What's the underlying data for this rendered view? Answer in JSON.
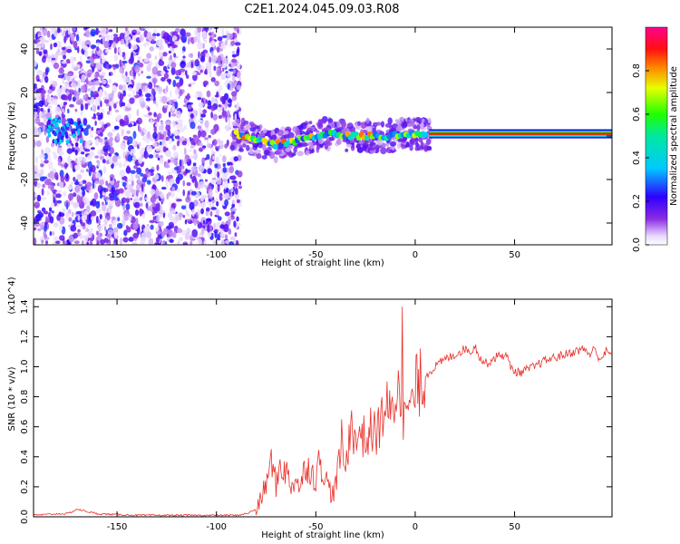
{
  "title": "C2E1.2024.045.09.03.R08",
  "chart_data": [
    {
      "type": "heatmap",
      "xlabel": "Height of straight line (km)",
      "ylabel": "Frequency (Hz)",
      "xlim": [
        -192,
        99
      ],
      "ylim": [
        -50,
        50
      ],
      "x_ticks": [
        -150,
        -100,
        -50,
        0,
        50
      ],
      "y_ticks": [
        -40,
        -20,
        0,
        20,
        40
      ],
      "colorbar": {
        "label": "Normalized spectral amplitude",
        "range": [
          0.0,
          1.0
        ],
        "ticks": [
          "0.0",
          "0.2",
          "0.4",
          "0.6",
          "0.8"
        ],
        "colormap": "rainbow"
      },
      "regions": [
        {
          "x_range": [
            -192,
            -88
          ],
          "description": "scattered noise across all frequencies, amplitude ~0.1-0.3"
        },
        {
          "x_range": [
            -88,
            7
          ],
          "description": "fragmented signal band near 0 Hz, amplitude ~0.3-1.0"
        },
        {
          "x_range": [
            7,
            99
          ],
          "description": "steady line at ~1 Hz, amplitude ~1.0"
        }
      ],
      "ridge_track": {
        "x": [
          -90,
          -85,
          -80,
          -75,
          -70,
          -65,
          -60,
          -55,
          -50,
          -45,
          -40,
          -35,
          -30,
          -25,
          -20,
          -15,
          -10,
          -5,
          0,
          5,
          10,
          20,
          40,
          60,
          80,
          99
        ],
        "y": [
          1,
          0,
          -2,
          -3,
          -4,
          -3,
          -2,
          -1,
          0,
          1,
          1,
          0,
          0,
          0,
          0,
          0,
          0,
          1,
          1,
          1,
          1,
          1,
          1,
          1,
          1,
          1
        ]
      }
    },
    {
      "type": "line",
      "xlabel": "Height of straight line (km)",
      "ylabel": "SNR (10 * v/v)",
      "y_multiplier": "(x10^4)",
      "xlim": [
        -192,
        99
      ],
      "ylim": [
        0.0,
        1.45
      ],
      "x_ticks": [
        -150,
        -100,
        -50,
        0,
        50
      ],
      "y_ticks": [
        "0.0",
        "0.2",
        "0.4",
        "0.6",
        "0.8",
        "1.0",
        "1.2",
        "1.4"
      ],
      "series": [
        {
          "color": "#e8302a",
          "x": [
            -192,
            -180,
            -175,
            -170,
            -160,
            -150,
            -140,
            -120,
            -100,
            -90,
            -85,
            -80,
            -78,
            -75,
            -72,
            -70,
            -68,
            -65,
            -62,
            -60,
            -58,
            -55,
            -52,
            -50,
            -48,
            -45,
            -42,
            -40,
            -37,
            -35,
            -32,
            -30,
            -28,
            -25,
            -22,
            -20,
            -18,
            -15,
            -12,
            -10,
            -8,
            -6,
            -4,
            -2,
            0,
            3,
            6,
            10,
            15,
            20,
            25,
            28,
            30,
            33,
            36,
            40,
            43,
            46,
            48,
            50,
            53,
            56,
            60,
            65,
            70,
            75,
            80,
            85,
            88,
            90,
            93,
            96,
            99
          ],
          "y": [
            0.01,
            0.02,
            0.02,
            0.05,
            0.02,
            0.015,
            0.01,
            0.01,
            0.01,
            0.01,
            0.02,
            0.05,
            0.1,
            0.22,
            0.38,
            0.2,
            0.35,
            0.3,
            0.2,
            0.28,
            0.18,
            0.35,
            0.3,
            0.25,
            0.38,
            0.25,
            0.15,
            0.2,
            0.5,
            0.3,
            0.7,
            0.45,
            0.6,
            0.5,
            0.58,
            0.55,
            0.6,
            0.75,
            0.65,
            0.8,
            0.9,
            0.7,
            0.75,
            0.7,
            0.85,
            0.9,
            0.95,
            1.0,
            1.05,
            1.08,
            1.12,
            1.1,
            1.14,
            1.05,
            1.02,
            1.06,
            1.08,
            1.07,
            1.0,
            0.97,
            0.96,
            0.98,
            1.0,
            1.04,
            1.06,
            1.08,
            1.1,
            1.12,
            1.08,
            1.12,
            1.05,
            1.1,
            1.08
          ]
        }
      ]
    }
  ]
}
